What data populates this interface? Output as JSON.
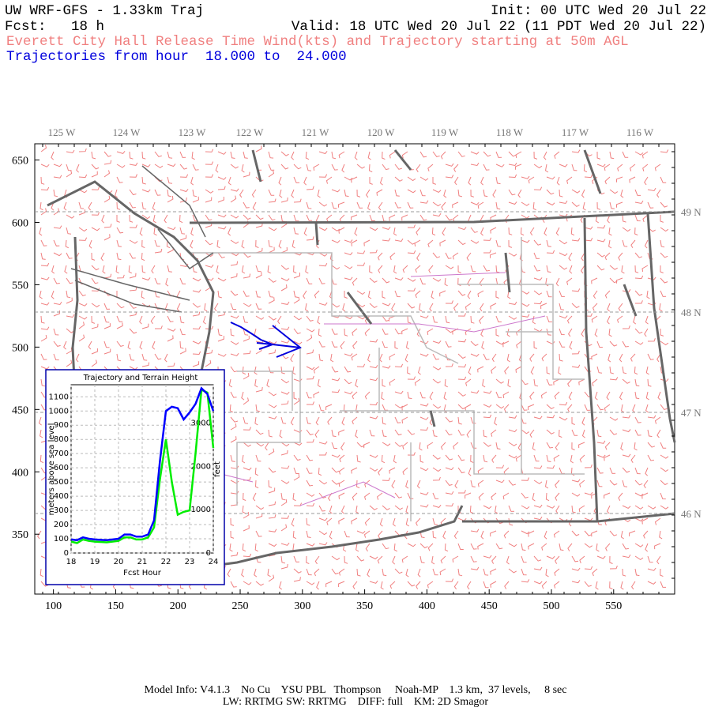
{
  "header": {
    "title": "UW WRF-GFS - 1.33km Traj",
    "init": "Init: 00 UTC Wed 20 Jul 22",
    "fcst": "Fcst:   18 h",
    "valid": "Valid: 18 UTC Wed 20 Jul 22 (11 PDT Wed 20 Jul 22)",
    "subtitle": "Everett City Hall Release Time Wind(kts) and Trajectory starting at 50m AGL",
    "range": "Trajectories from hour  18.000 to  24.000"
  },
  "map": {
    "xlim": [
      85,
      599
    ],
    "ylim": [
      302,
      663
    ],
    "xticks": [
      100,
      150,
      200,
      250,
      300,
      350,
      400,
      450,
      500,
      550
    ],
    "yticks": [
      350,
      400,
      450,
      500,
      550,
      600,
      650
    ],
    "lon_labels": [
      "125 W",
      "124 W",
      "123 W",
      "122 W",
      "121 W",
      "120 W",
      "119 W",
      "118 W",
      "117 W",
      "116 W"
    ],
    "lat_labels": [
      "49 N",
      "48 N",
      "47 N",
      "46 N"
    ]
  },
  "chart_data": {
    "type": "line",
    "title": "Trajectory and Terrain Height",
    "xlabel": "Fcst Hour",
    "ylabel": "meters above sea level",
    "y2label": "feet",
    "x": [
      18,
      18.25,
      18.5,
      18.75,
      19,
      19.5,
      20,
      20.25,
      20.5,
      20.75,
      21,
      21.25,
      21.5,
      21.75,
      22,
      22.25,
      22.5,
      22.75,
      23,
      23.25,
      23.5,
      23.75,
      24
    ],
    "series": [
      {
        "color": "#0000ff",
        "values": [
          95,
          90,
          110,
          100,
          95,
          90,
          100,
          130,
          130,
          115,
          115,
          130,
          230,
          650,
          1000,
          1030,
          1020,
          940,
          990,
          1050,
          1160,
          1120,
          1000
        ]
      },
      {
        "color": "#00ee00",
        "values": [
          80,
          70,
          95,
          85,
          80,
          75,
          85,
          110,
          110,
          95,
          95,
          110,
          180,
          520,
          800,
          500,
          270,
          290,
          300,
          700,
          1150,
          1130,
          740
        ]
      }
    ],
    "xlim": [
      18,
      24
    ],
    "xticks": [
      18,
      19,
      20,
      21,
      22,
      23,
      24
    ],
    "ylim": [
      0,
      1185
    ],
    "yticks": [
      0,
      100,
      200,
      300,
      400,
      500,
      600,
      700,
      800,
      900,
      1000,
      1100
    ],
    "y2lim": [
      0,
      3888
    ],
    "y2ticks": [
      0,
      1000,
      2000,
      3000
    ],
    "grid": true
  },
  "footer": {
    "line1": "Model Info: V4.1.3    No Cu    YSU PBL   Thompson     Noah-MP    1.3 km,  37 levels,     8 sec",
    "line2": "LW: RRTMG SW: RRTMG    DIFF: full    KM: 2D Smagor"
  }
}
